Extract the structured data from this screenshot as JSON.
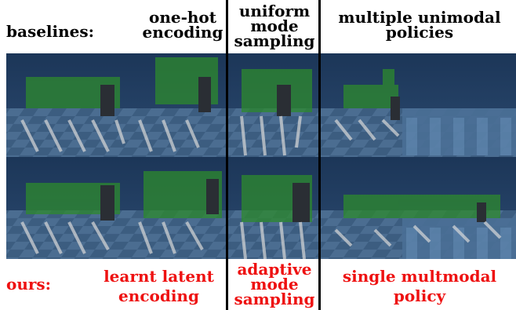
{
  "baselines": {
    "row_label": "baselines:",
    "one_hot": [
      "one-hot",
      "encoding"
    ],
    "uniform": [
      "uniform",
      "mode",
      "sampling"
    ],
    "multiple": [
      "multiple unimodal",
      "policies"
    ]
  },
  "ours": {
    "row_label": "ours:",
    "latent": [
      "learnt latent",
      "encoding"
    ],
    "adaptive": [
      "adaptive",
      "mode",
      "sampling"
    ],
    "single": [
      "single multmodal",
      "policy"
    ]
  },
  "colors": {
    "ours_text": "#ee1111",
    "floor": "#3a5a7c",
    "sky": "#1f3c5e",
    "trail": "#2d8a2d"
  }
}
